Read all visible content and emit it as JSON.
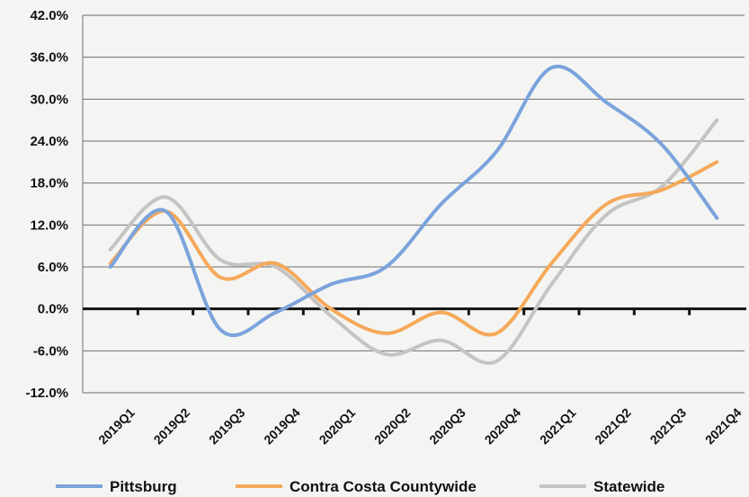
{
  "chart_data": {
    "type": "line",
    "title": "",
    "xlabel": "",
    "ylabel": "",
    "categories": [
      "2019Q1",
      "2019Q2",
      "2019Q3",
      "2019Q4",
      "2020Q1",
      "2020Q2",
      "2020Q3",
      "2020Q4",
      "2021Q1",
      "2021Q2",
      "2021Q3",
      "2021Q4"
    ],
    "y_ticks": [
      "42.0%",
      "36.0%",
      "30.0%",
      "24.0%",
      "18.0%",
      "12.0%",
      "6.0%",
      "0.0%",
      "-6.0%",
      "-12.0%"
    ],
    "ylim": [
      -12,
      42
    ],
    "y_unit": "%",
    "grid": true,
    "legend_position": "bottom",
    "series": [
      {
        "name": "Pittsburg",
        "color": "#7ba3dc",
        "values": [
          6.0,
          14.0,
          -3.0,
          -0.5,
          3.5,
          6.0,
          15.0,
          22.5,
          34.5,
          29.5,
          23.5,
          13.0
        ]
      },
      {
        "name": "Contra Costa Countywide",
        "color": "#f5a95a",
        "values": [
          6.5,
          14.0,
          4.5,
          6.5,
          0.0,
          -3.5,
          -0.5,
          -3.5,
          6.5,
          15.0,
          17.0,
          21.0
        ]
      },
      {
        "name": "Statewide",
        "color": "#c4c4c2",
        "values": [
          8.5,
          16.0,
          7.0,
          6.0,
          -1.0,
          -6.5,
          -4.5,
          -7.5,
          3.5,
          13.5,
          17.5,
          27.0
        ]
      }
    ]
  }
}
